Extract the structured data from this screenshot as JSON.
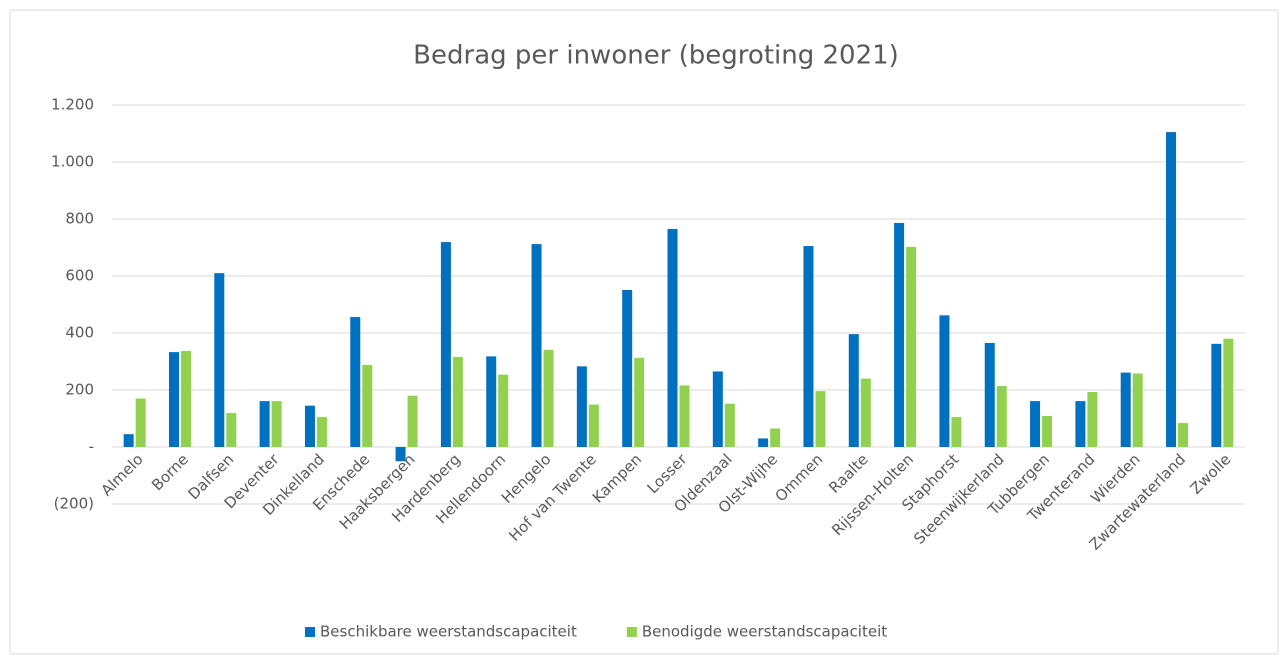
{
  "chart_data": {
    "type": "bar",
    "title": "Bedrag per inwoner (begroting 2021)",
    "categories": [
      "Almelo",
      "Borne",
      "Dalfsen",
      "Deventer",
      "Dinkelland",
      "Enschede",
      "Haaksbergen",
      "Hardenberg",
      "Hellendoorn",
      "Hengelo",
      "Hof van Twente",
      "Kampen",
      "Losser",
      "Oldenzaal",
      "Olst-Wijhe",
      "Ommen",
      "Raalte",
      "Rijssen-Holten",
      "Staphorst",
      "Steenwijkerland",
      "Tubbergen",
      "Twenterand",
      "Wierden",
      "Zwartewaterland",
      "Zwolle"
    ],
    "series": [
      {
        "name": "Beschikbare weerstandscapaciteit",
        "color": "#0070c0",
        "values": [
          45,
          333,
          610,
          161,
          145,
          456,
          -50,
          719,
          318,
          712,
          283,
          551,
          765,
          265,
          30,
          705,
          396,
          786,
          462,
          365,
          161,
          161,
          261,
          1105,
          362
        ]
      },
      {
        "name": "Benodigde weerstandscapaciteit",
        "color": "#92d050",
        "values": [
          170,
          337,
          119,
          161,
          105,
          288,
          180,
          316,
          254,
          341,
          149,
          313,
          216,
          152,
          65,
          196,
          240,
          702,
          105,
          214,
          109,
          193,
          258,
          84,
          380
        ]
      }
    ],
    "ylim": [
      -200,
      1200
    ],
    "yticks": [
      {
        "value": -200,
        "label": "(200)"
      },
      {
        "value": 0,
        "label": "-"
      },
      200,
      400,
      600,
      800,
      {
        "value": 1000,
        "label": "1.000"
      },
      {
        "value": 1200,
        "label": "1.200"
      }
    ],
    "grid": true,
    "legend": "bottom"
  }
}
